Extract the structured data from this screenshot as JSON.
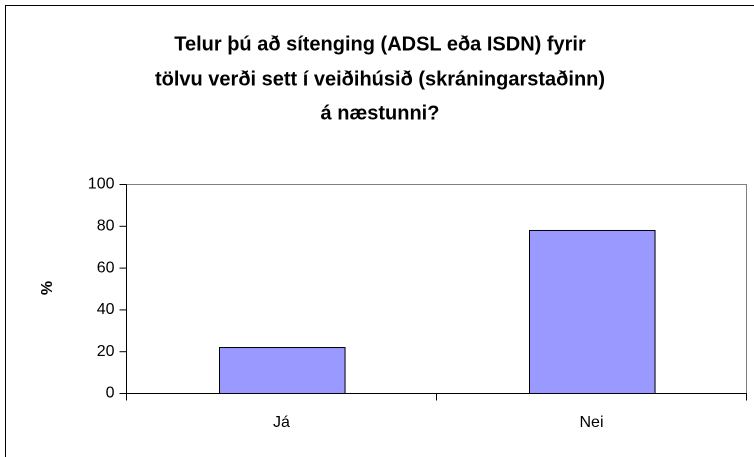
{
  "chart_data": {
    "type": "bar",
    "title": [
      "Telur þú að sítenging (ADSL eða ISDN) fyrir",
      "tölvu verði sett í veiðihúsið (skráningarstaðinn)",
      "á næstunni?"
    ],
    "y_label": "%",
    "categories": [
      "Já",
      "Nei"
    ],
    "values": [
      22,
      78
    ],
    "color": "#9999ff",
    "ylim": [
      0,
      100
    ],
    "yticks": [
      0,
      20,
      40,
      60,
      80,
      100
    ]
  }
}
